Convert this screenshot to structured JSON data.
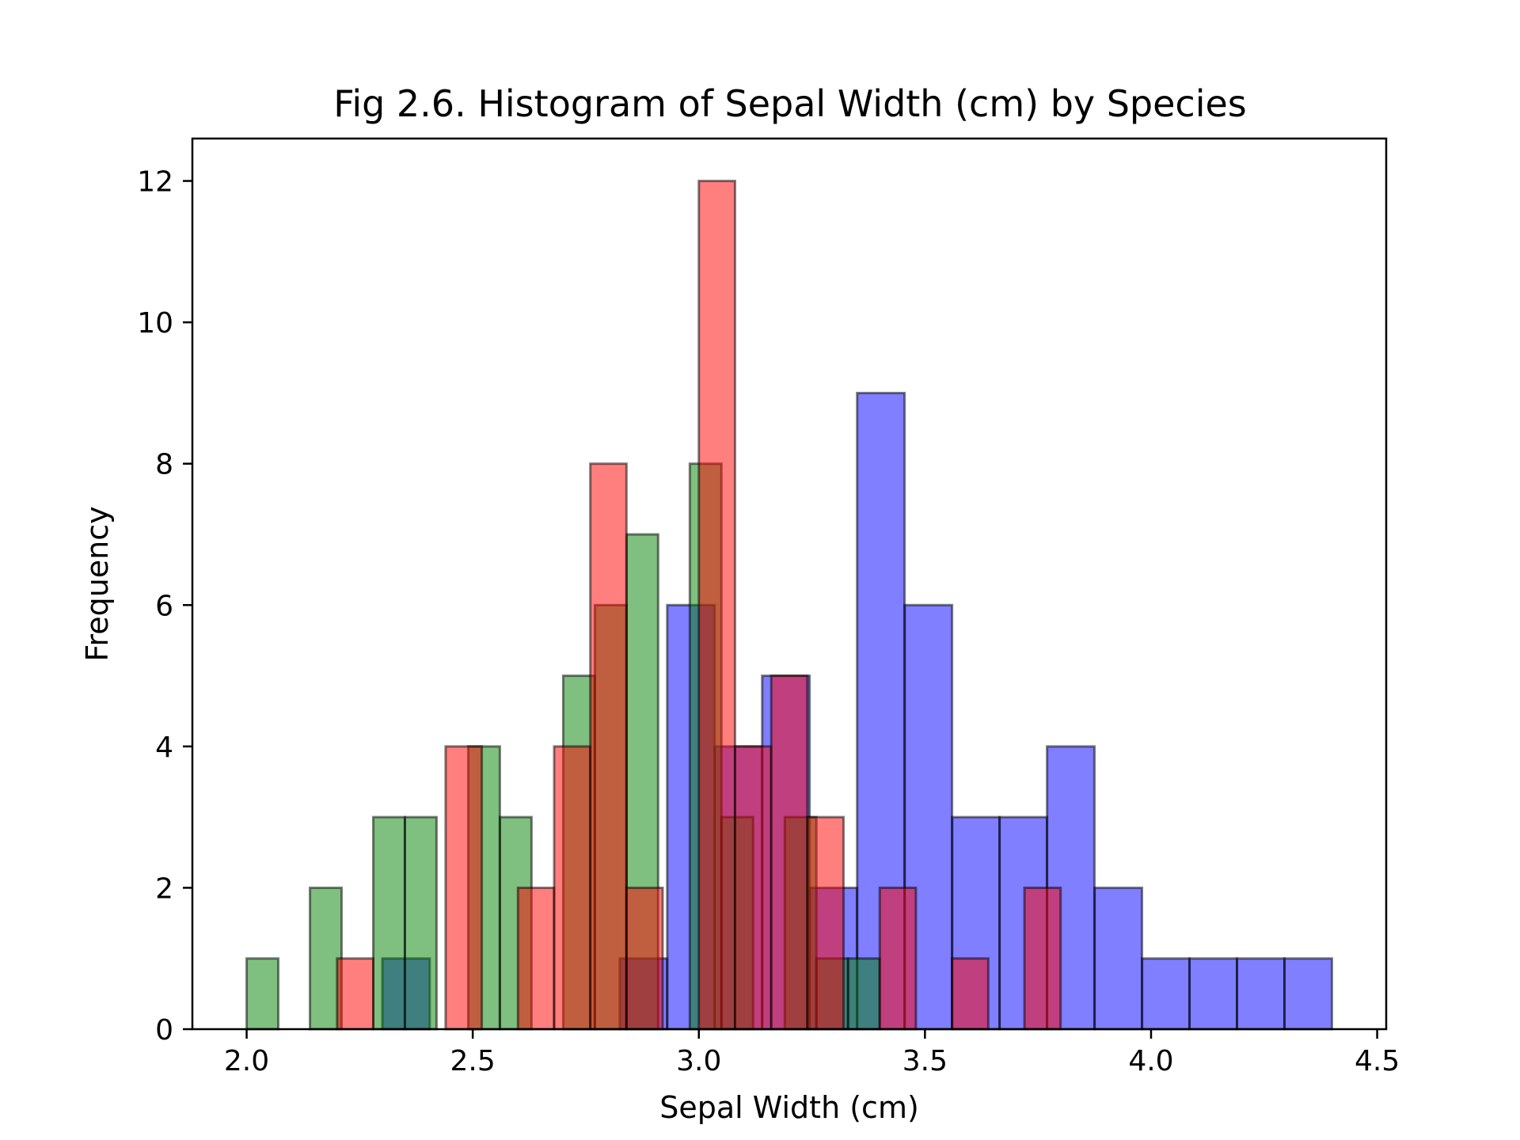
{
  "chart_data": {
    "type": "histogram",
    "title": "Fig 2.6. Histogram of Sepal Width (cm) by Species",
    "xlabel": "Sepal Width (cm)",
    "ylabel": "Frequency",
    "xlim": [
      1.88,
      4.52
    ],
    "ylim": [
      0,
      12.6
    ],
    "xticks": [
      2.0,
      2.5,
      3.0,
      3.5,
      4.0,
      4.5
    ],
    "xtick_labels": [
      "2.0",
      "2.5",
      "3.0",
      "3.5",
      "4.0",
      "4.5"
    ],
    "yticks": [
      0,
      2,
      4,
      6,
      8,
      10,
      12
    ],
    "ytick_labels": [
      "0",
      "2",
      "4",
      "6",
      "8",
      "10",
      "12"
    ],
    "grid": false,
    "legend": "none",
    "series": [
      {
        "color": "#0000ff",
        "opacity": 0.5,
        "bins": [
          {
            "x0": 2.3,
            "x1": 2.405,
            "count": 1
          },
          {
            "x0": 2.825,
            "x1": 2.93,
            "count": 1
          },
          {
            "x0": 2.93,
            "x1": 3.035,
            "count": 6
          },
          {
            "x0": 3.035,
            "x1": 3.14,
            "count": 4
          },
          {
            "x0": 3.14,
            "x1": 3.245,
            "count": 5
          },
          {
            "x0": 3.245,
            "x1": 3.35,
            "count": 2
          },
          {
            "x0": 3.35,
            "x1": 3.455,
            "count": 9
          },
          {
            "x0": 3.455,
            "x1": 3.56,
            "count": 6
          },
          {
            "x0": 3.56,
            "x1": 3.665,
            "count": 3
          },
          {
            "x0": 3.665,
            "x1": 3.77,
            "count": 3
          },
          {
            "x0": 3.77,
            "x1": 3.875,
            "count": 4
          },
          {
            "x0": 3.875,
            "x1": 3.98,
            "count": 2
          },
          {
            "x0": 3.98,
            "x1": 4.085,
            "count": 1
          },
          {
            "x0": 4.085,
            "x1": 4.19,
            "count": 1
          },
          {
            "x0": 4.19,
            "x1": 4.295,
            "count": 1
          },
          {
            "x0": 4.295,
            "x1": 4.4,
            "count": 1
          }
        ]
      },
      {
        "color": "#008000",
        "opacity": 0.5,
        "bins": [
          {
            "x0": 2.0,
            "x1": 2.07,
            "count": 1
          },
          {
            "x0": 2.14,
            "x1": 2.21,
            "count": 2
          },
          {
            "x0": 2.28,
            "x1": 2.35,
            "count": 3
          },
          {
            "x0": 2.35,
            "x1": 2.42,
            "count": 3
          },
          {
            "x0": 2.49,
            "x1": 2.56,
            "count": 4
          },
          {
            "x0": 2.56,
            "x1": 2.63,
            "count": 3
          },
          {
            "x0": 2.7,
            "x1": 2.77,
            "count": 5
          },
          {
            "x0": 2.77,
            "x1": 2.84,
            "count": 6
          },
          {
            "x0": 2.84,
            "x1": 2.91,
            "count": 7
          },
          {
            "x0": 2.98,
            "x1": 3.05,
            "count": 8
          },
          {
            "x0": 3.05,
            "x1": 3.12,
            "count": 3
          },
          {
            "x0": 3.19,
            "x1": 3.26,
            "count": 3
          },
          {
            "x0": 3.26,
            "x1": 3.33,
            "count": 1
          },
          {
            "x0": 3.33,
            "x1": 3.4,
            "count": 1
          }
        ]
      },
      {
        "color": "#ff0000",
        "opacity": 0.5,
        "bins": [
          {
            "x0": 2.2,
            "x1": 2.28,
            "count": 1
          },
          {
            "x0": 2.44,
            "x1": 2.52,
            "count": 4
          },
          {
            "x0": 2.6,
            "x1": 2.68,
            "count": 2
          },
          {
            "x0": 2.68,
            "x1": 2.76,
            "count": 4
          },
          {
            "x0": 2.76,
            "x1": 2.84,
            "count": 8
          },
          {
            "x0": 2.84,
            "x1": 2.92,
            "count": 2
          },
          {
            "x0": 3.0,
            "x1": 3.08,
            "count": 12
          },
          {
            "x0": 3.08,
            "x1": 3.16,
            "count": 4
          },
          {
            "x0": 3.16,
            "x1": 3.24,
            "count": 5
          },
          {
            "x0": 3.24,
            "x1": 3.32,
            "count": 3
          },
          {
            "x0": 3.4,
            "x1": 3.48,
            "count": 2
          },
          {
            "x0": 3.56,
            "x1": 3.64,
            "count": 1
          },
          {
            "x0": 3.72,
            "x1": 3.8,
            "count": 2
          }
        ]
      }
    ]
  }
}
